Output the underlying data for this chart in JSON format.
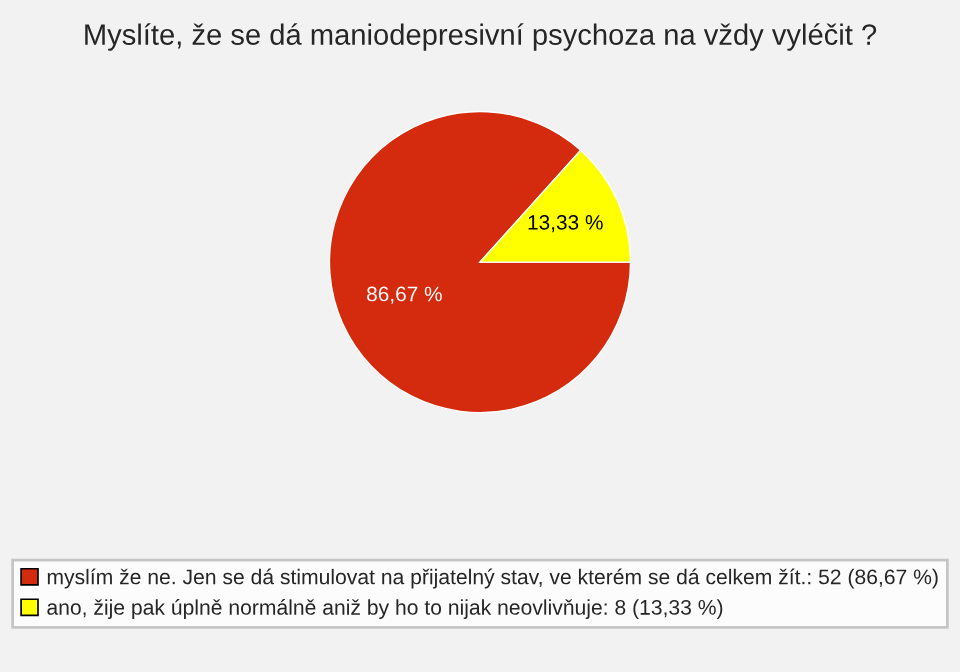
{
  "chart_data": {
    "type": "pie",
    "title": "Myslíte, že se dá maniodepresivní psychoza na vždy vyléčit ?",
    "categories": [
      "myslím že ne. Jen se dá stimulovat na přijatelný stav, ve kterém se dá celkem žít.: 52 (86,67 %)",
      "ano, žije pak úplně normálně aniž by ho to nijak neovlivňuje: 8 (13,33 %)"
    ],
    "values": [
      86.67,
      13.33
    ],
    "value_labels": [
      "86,67 %",
      "13,33 %"
    ],
    "colors": [
      "#d42a0e",
      "#ffff00"
    ],
    "legend": "bottom"
  }
}
